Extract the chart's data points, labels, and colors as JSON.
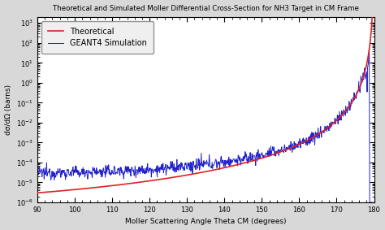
{
  "title": "Theoretical and Simulated Moller Differential Cross-Section for NH3 Target in CM Frame",
  "xlabel": "Moller Scattering Angle Theta CM (degrees)",
  "ylabel": "dσ/dΩ (barns)",
  "xmin": 90,
  "xmax": 180,
  "ymin": 1e-06,
  "ymax": 2000.0,
  "xticks": [
    90,
    100,
    110,
    120,
    130,
    140,
    150,
    160,
    170,
    180
  ],
  "ytick_labels": [
    "10⁻⁵",
    "10⁻⁴",
    "10⁻³",
    "10⁻²",
    "10⁻¹",
    "1",
    "10",
    "10²",
    "10³"
  ],
  "theoretical_color": "#dd2222",
  "simulation_color": "#2222cc",
  "legend_labels": [
    "Theoretical",
    "GEANT4 Simulation"
  ],
  "bg_color": "#d8d8d8",
  "plot_bg_color": "#ffffff"
}
